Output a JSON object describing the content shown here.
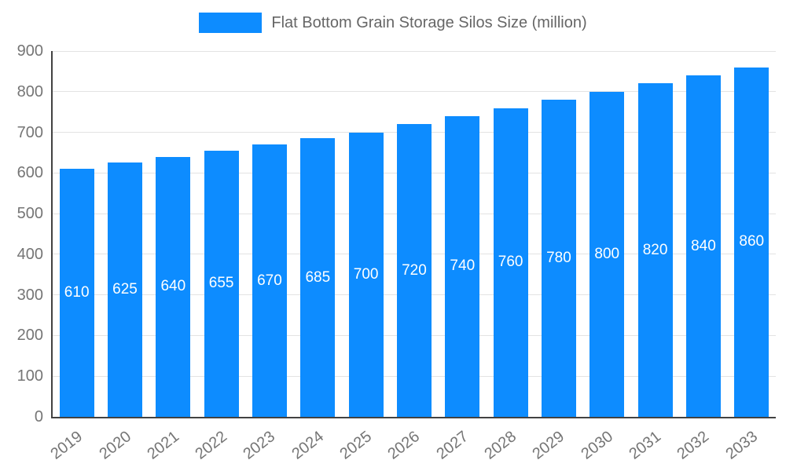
{
  "legend": {
    "label": "Flat Bottom Grain Storage Silos Size (million)"
  },
  "colors": {
    "bar": "#0d8cff",
    "grid": "#e3e3e3",
    "axis": "#424242",
    "tick_text": "#757575",
    "legend_text": "#666666",
    "bar_label_text": "#ffffff"
  },
  "chart_data": {
    "type": "bar",
    "title": "Flat Bottom Grain Storage Silos Size (million)",
    "categories": [
      "2019",
      "2020",
      "2021",
      "2022",
      "2023",
      "2024",
      "2025",
      "2026",
      "2027",
      "2028",
      "2029",
      "2030",
      "2031",
      "2032",
      "2033"
    ],
    "values": [
      610,
      625,
      640,
      655,
      670,
      685,
      700,
      720,
      740,
      760,
      780,
      800,
      820,
      840,
      860
    ],
    "xlabel": "",
    "ylabel": "",
    "ylim": [
      0,
      900
    ],
    "ytick_step": 100,
    "grid": true,
    "legend_position": "top",
    "bar_value_labels": "inside-center",
    "xtick_rotation_deg": -38
  }
}
